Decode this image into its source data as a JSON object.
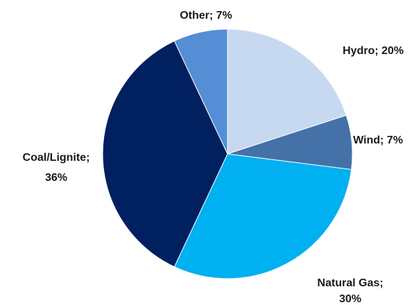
{
  "chart_data": {
    "type": "pie",
    "title": "",
    "slices": [
      {
        "label": "Hydro",
        "value": 20,
        "value_label": "20%",
        "color": "#c6d9f1"
      },
      {
        "label": "Wind",
        "value": 7,
        "value_label": "7%",
        "color": "#4472a8"
      },
      {
        "label": "Natural Gas",
        "value": 30,
        "value_label": "30%",
        "color": "#00b0f0"
      },
      {
        "label": "Coal/Lignite",
        "value": 36,
        "value_label": "36%",
        "color": "#002060"
      },
      {
        "label": "Other",
        "value": 7,
        "value_label": "7%",
        "color": "#558ed5"
      }
    ],
    "legend": "none",
    "label_format": "category; percent"
  }
}
